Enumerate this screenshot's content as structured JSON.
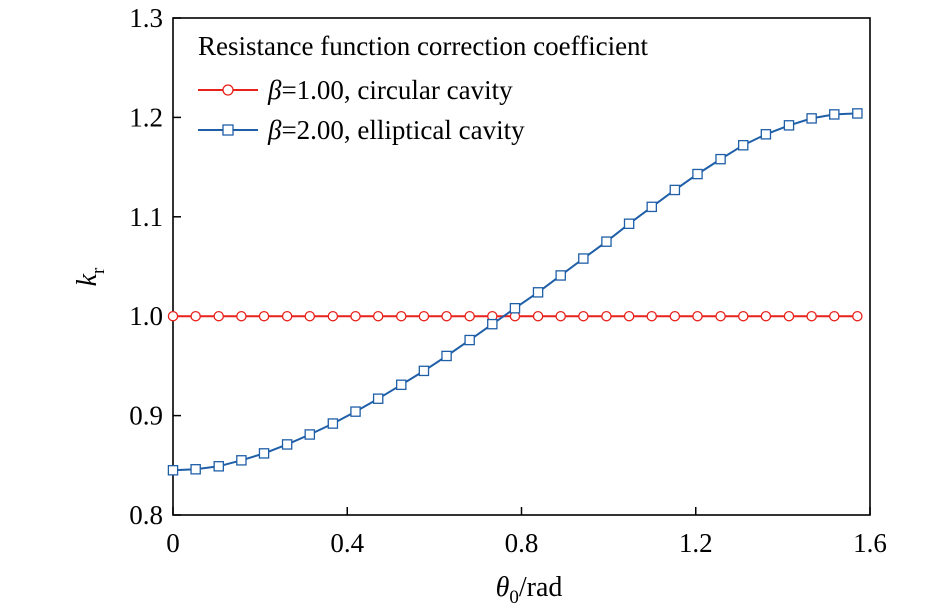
{
  "chart_data": {
    "type": "line",
    "title": "",
    "xlabel": {
      "symbol": "θ",
      "subscript": "0",
      "unit": "/rad"
    },
    "ylabel": {
      "symbol": "k",
      "subscript": "r"
    },
    "xlim": [
      0,
      1.6
    ],
    "ylim": [
      0.8,
      1.3
    ],
    "xticks": [
      "0",
      "0.4",
      "0.8",
      "1.2",
      "1.6"
    ],
    "yticks": [
      "0.8",
      "0.9",
      "1.0",
      "1.1",
      "1.2",
      "1.3"
    ],
    "grid": false,
    "legend": {
      "title": "Resistance function correction coefficient",
      "placement": "top-left"
    },
    "series": [
      {
        "name": "β=1.00, circular cavity",
        "legend_symbol": "β",
        "legend_text": "=1.00, circular cavity",
        "color": "#e8211b",
        "marker": "circle",
        "x": [
          0,
          0.052,
          0.105,
          0.157,
          0.209,
          0.262,
          0.314,
          0.367,
          0.419,
          0.471,
          0.524,
          0.576,
          0.628,
          0.681,
          0.733,
          0.785,
          0.838,
          0.89,
          0.942,
          0.995,
          1.047,
          1.099,
          1.152,
          1.204,
          1.257,
          1.309,
          1.361,
          1.414,
          1.466,
          1.518,
          1.571
        ],
        "y": [
          1.0,
          1.0,
          1.0,
          1.0,
          1.0,
          1.0,
          1.0,
          1.0,
          1.0,
          1.0,
          1.0,
          1.0,
          1.0,
          1.0,
          1.0,
          1.0,
          1.0,
          1.0,
          1.0,
          1.0,
          1.0,
          1.0,
          1.0,
          1.0,
          1.0,
          1.0,
          1.0,
          1.0,
          1.0,
          1.0,
          1.0
        ]
      },
      {
        "name": "β=2.00, elliptical cavity",
        "legend_symbol": "β",
        "legend_text": "=2.00, elliptical cavity",
        "color": "#1f5fa8",
        "marker": "square",
        "x": [
          0,
          0.052,
          0.105,
          0.157,
          0.209,
          0.262,
          0.314,
          0.367,
          0.419,
          0.471,
          0.524,
          0.576,
          0.628,
          0.681,
          0.733,
          0.785,
          0.838,
          0.89,
          0.942,
          0.995,
          1.047,
          1.099,
          1.152,
          1.204,
          1.257,
          1.309,
          1.361,
          1.414,
          1.466,
          1.518,
          1.571
        ],
        "y": [
          0.845,
          0.846,
          0.849,
          0.855,
          0.862,
          0.871,
          0.881,
          0.892,
          0.904,
          0.917,
          0.931,
          0.945,
          0.96,
          0.976,
          0.992,
          1.008,
          1.024,
          1.041,
          1.058,
          1.075,
          1.093,
          1.11,
          1.127,
          1.143,
          1.158,
          1.172,
          1.183,
          1.192,
          1.199,
          1.203,
          1.204
        ]
      }
    ]
  }
}
